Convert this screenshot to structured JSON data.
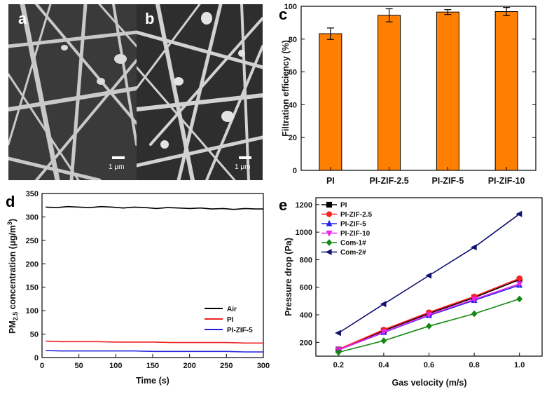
{
  "panels": {
    "a": "a",
    "b": "b",
    "c": "c",
    "d": "d",
    "e": "e"
  },
  "scalebars": {
    "a": "1 μm",
    "b": "1 μm"
  },
  "chart_data": [
    {
      "panel": "c",
      "type": "bar",
      "categories": [
        "PI",
        "PI-ZIF-2.5",
        "PI-ZIF-5",
        "PI-ZIF-10"
      ],
      "values": [
        83.3,
        94.5,
        96.5,
        96.8
      ],
      "errors": [
        3.5,
        4.0,
        1.5,
        2.5
      ],
      "ylabel": "Filtration efficiency (%)",
      "ylim": [
        0,
        100
      ],
      "yticks": [
        0,
        20,
        40,
        60,
        80,
        100
      ],
      "color": "#ff8000"
    },
    {
      "panel": "d",
      "type": "line",
      "xlabel": "Time (s)",
      "ylabel": "PM2.5 concentration (μg/m3)",
      "ylabel_parts": {
        "pre": "PM",
        "sub": "2.5",
        "mid": " concentration (μg/m",
        "sup": "3",
        "post": ")"
      },
      "xlim": [
        0,
        300
      ],
      "ylim": [
        0,
        350
      ],
      "xticks": [
        0,
        50,
        100,
        150,
        200,
        250,
        300
      ],
      "yticks": [
        0,
        50,
        100,
        150,
        200,
        250,
        300,
        350
      ],
      "legend_position": "bottom-right",
      "series": [
        {
          "name": "Air",
          "color": "#000000",
          "x": [
            5,
            20,
            35,
            50,
            65,
            80,
            95,
            110,
            125,
            140,
            155,
            170,
            185,
            200,
            215,
            230,
            245,
            260,
            275,
            290,
            300
          ],
          "y": [
            321,
            320,
            322,
            321,
            320,
            322,
            321,
            319,
            321,
            320,
            318,
            320,
            319,
            318,
            319,
            317,
            318,
            316,
            318,
            317,
            317
          ]
        },
        {
          "name": "PI",
          "color": "#ee2222",
          "x": [
            5,
            25,
            50,
            75,
            100,
            125,
            150,
            175,
            200,
            225,
            250,
            275,
            300
          ],
          "y": [
            35,
            34,
            34,
            34,
            33,
            33,
            33,
            32,
            32,
            32,
            32,
            31,
            31
          ]
        },
        {
          "name": "PI-ZIF-5",
          "color": "#2222dd",
          "x": [
            5,
            25,
            50,
            75,
            100,
            125,
            150,
            175,
            200,
            225,
            250,
            275,
            300
          ],
          "y": [
            15,
            14,
            14,
            14,
            14,
            14,
            13,
            13,
            13,
            13,
            13,
            12,
            12
          ]
        }
      ]
    },
    {
      "panel": "e",
      "type": "line",
      "xlabel": "Gas velocity (m/s)",
      "ylabel": "Pressure drop (Pa)",
      "xlim": [
        0.1,
        1.1
      ],
      "ylim": [
        100,
        1250
      ],
      "xticks": [
        0.2,
        0.4,
        0.6,
        0.8,
        1.0
      ],
      "xtick_labels": [
        "0.2",
        "0.4",
        "0.6",
        "0.8",
        "1.0"
      ],
      "yticks": [
        200,
        400,
        600,
        800,
        1000,
        1200
      ],
      "legend_position": "top-left",
      "x": [
        0.2,
        0.4,
        0.6,
        0.8,
        1.0
      ],
      "series": [
        {
          "name": "PI",
          "color": "#000000",
          "marker": "square",
          "values": [
            148,
            285,
            410,
            525,
            655
          ]
        },
        {
          "name": "PI-ZIF-2.5",
          "color": "#ff2020",
          "marker": "circle",
          "values": [
            150,
            292,
            418,
            533,
            665
          ]
        },
        {
          "name": "PI-ZIF-5",
          "color": "#2222ee",
          "marker": "triangle",
          "values": [
            145,
            272,
            395,
            505,
            615
          ]
        },
        {
          "name": "PI-ZIF-10",
          "color": "#ee22ee",
          "marker": "triangle-down",
          "values": [
            146,
            275,
            400,
            512,
            625
          ]
        },
        {
          "name": "Com-1#",
          "color": "#118811",
          "marker": "diamond",
          "values": [
            128,
            212,
            318,
            408,
            515
          ]
        },
        {
          "name": "Com-2#",
          "color": "#101070",
          "marker": "left-triangle",
          "values": [
            268,
            478,
            685,
            890,
            1132
          ]
        }
      ]
    }
  ]
}
